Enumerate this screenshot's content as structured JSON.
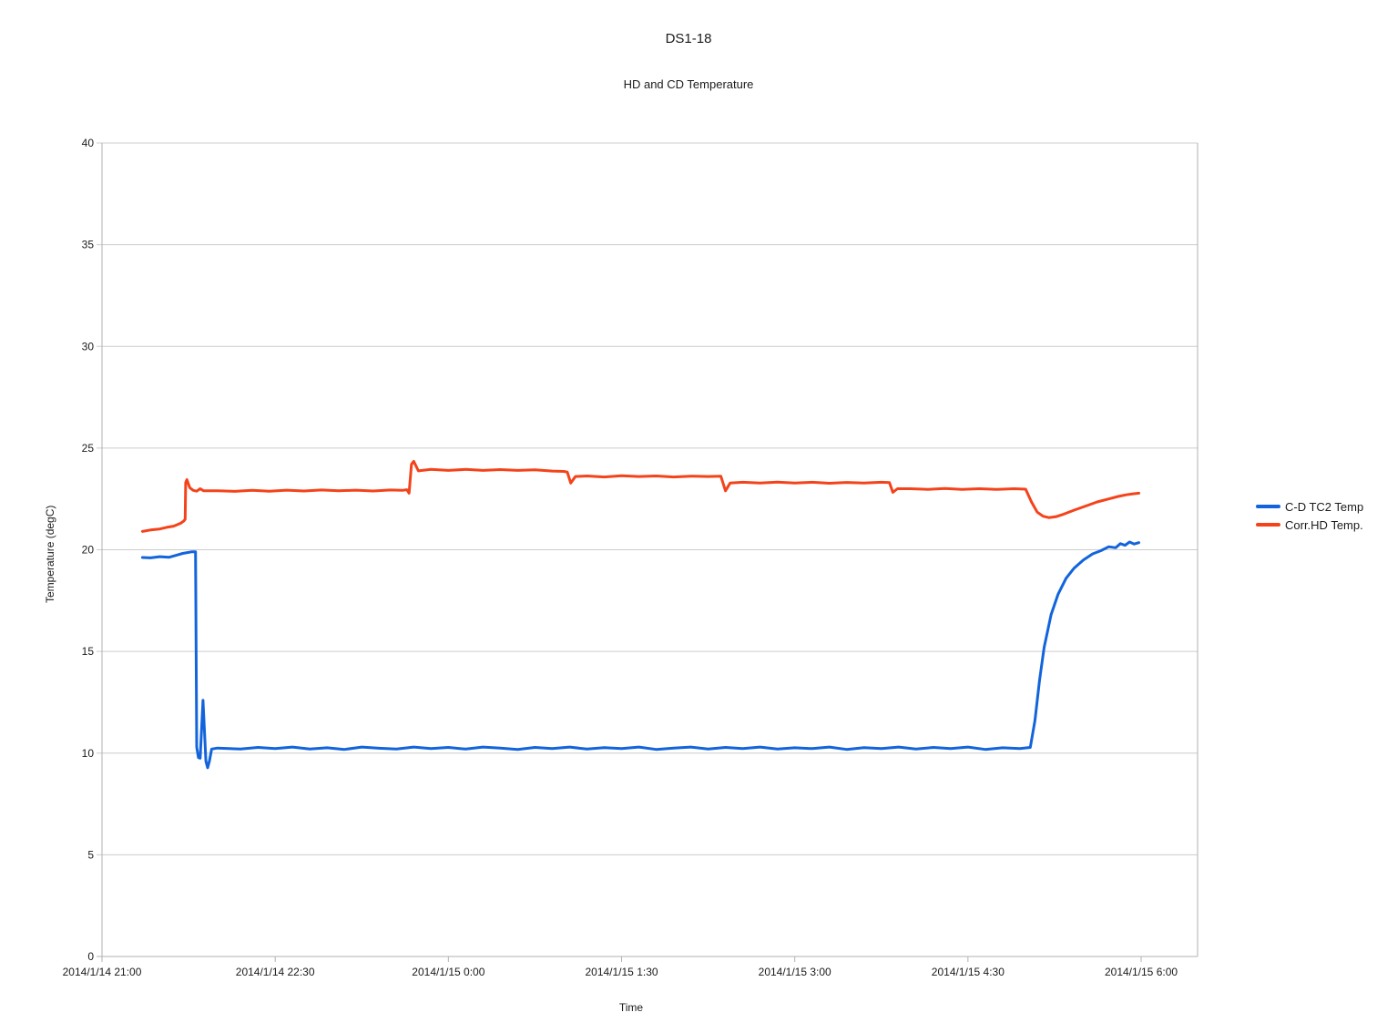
{
  "page": {
    "title": "DS1-18",
    "subtitle": "HD and CD Temperature"
  },
  "chart_data": {
    "type": "line",
    "title": "DS1-18",
    "subtitle": "HD and CD Temperature",
    "xlabel": "Time",
    "ylabel": "Temperature (degC)",
    "x_time_base": "2014/1/14 21:00",
    "x_units": "hours after 21:00",
    "xlim_hours": [
      0,
      9.49
    ],
    "ylim": [
      0,
      40
    ],
    "y_tick_step": 5,
    "y_ticks": [
      0,
      5,
      10,
      15,
      20,
      25,
      30,
      35,
      40
    ],
    "x_ticks": [
      {
        "t": 0.0,
        "label": "2014/1/14 21:00"
      },
      {
        "t": 1.5,
        "label": "2014/1/14 22:30"
      },
      {
        "t": 3.0,
        "label": "2014/1/15 0:00"
      },
      {
        "t": 4.5,
        "label": "2014/1/15 1:30"
      },
      {
        "t": 6.0,
        "label": "2014/1/15 3:00"
      },
      {
        "t": 7.5,
        "label": "2014/1/15 4:30"
      },
      {
        "t": 9.0,
        "label": "2014/1/15 6:00"
      }
    ],
    "grid": {
      "on": true,
      "color": "#cccccc",
      "border_color": "#b2b2b2"
    },
    "legend_position": "right",
    "series": [
      {
        "name": "C-D TC2 Temp",
        "color": "#1264dc",
        "points": [
          [
            0.35,
            19.62
          ],
          [
            0.42,
            19.6
          ],
          [
            0.5,
            19.66
          ],
          [
            0.58,
            19.63
          ],
          [
            0.65,
            19.74
          ],
          [
            0.7,
            19.82
          ],
          [
            0.74,
            19.86
          ],
          [
            0.78,
            19.9
          ],
          [
            0.81,
            19.9
          ],
          [
            0.82,
            10.3
          ],
          [
            0.835,
            9.78
          ],
          [
            0.85,
            9.75
          ],
          [
            0.875,
            12.6
          ],
          [
            0.9,
            9.6
          ],
          [
            0.915,
            9.28
          ],
          [
            0.93,
            9.6
          ],
          [
            0.95,
            10.2
          ],
          [
            1.0,
            10.25
          ],
          [
            1.2,
            10.2
          ],
          [
            1.35,
            10.28
          ],
          [
            1.5,
            10.22
          ],
          [
            1.65,
            10.3
          ],
          [
            1.8,
            10.2
          ],
          [
            1.95,
            10.26
          ],
          [
            2.1,
            10.18
          ],
          [
            2.25,
            10.3
          ],
          [
            2.4,
            10.24
          ],
          [
            2.55,
            10.2
          ],
          [
            2.7,
            10.3
          ],
          [
            2.85,
            10.22
          ],
          [
            3.0,
            10.28
          ],
          [
            3.15,
            10.2
          ],
          [
            3.3,
            10.3
          ],
          [
            3.45,
            10.25
          ],
          [
            3.6,
            10.18
          ],
          [
            3.75,
            10.28
          ],
          [
            3.9,
            10.22
          ],
          [
            4.05,
            10.3
          ],
          [
            4.2,
            10.2
          ],
          [
            4.35,
            10.27
          ],
          [
            4.5,
            10.22
          ],
          [
            4.65,
            10.3
          ],
          [
            4.8,
            10.18
          ],
          [
            4.95,
            10.25
          ],
          [
            5.1,
            10.3
          ],
          [
            5.25,
            10.2
          ],
          [
            5.4,
            10.28
          ],
          [
            5.55,
            10.22
          ],
          [
            5.7,
            10.3
          ],
          [
            5.85,
            10.2
          ],
          [
            6.0,
            10.26
          ],
          [
            6.15,
            10.22
          ],
          [
            6.3,
            10.3
          ],
          [
            6.45,
            10.18
          ],
          [
            6.6,
            10.27
          ],
          [
            6.75,
            10.22
          ],
          [
            6.9,
            10.3
          ],
          [
            7.05,
            10.2
          ],
          [
            7.2,
            10.28
          ],
          [
            7.35,
            10.22
          ],
          [
            7.5,
            10.3
          ],
          [
            7.65,
            10.18
          ],
          [
            7.8,
            10.26
          ],
          [
            7.95,
            10.22
          ],
          [
            8.04,
            10.28
          ],
          [
            8.08,
            11.6
          ],
          [
            8.12,
            13.6
          ],
          [
            8.16,
            15.2
          ],
          [
            8.22,
            16.8
          ],
          [
            8.28,
            17.8
          ],
          [
            8.35,
            18.6
          ],
          [
            8.42,
            19.1
          ],
          [
            8.5,
            19.5
          ],
          [
            8.58,
            19.8
          ],
          [
            8.65,
            19.95
          ],
          [
            8.72,
            20.15
          ],
          [
            8.78,
            20.1
          ],
          [
            8.82,
            20.3
          ],
          [
            8.86,
            20.22
          ],
          [
            8.9,
            20.38
          ],
          [
            8.94,
            20.28
          ],
          [
            8.98,
            20.35
          ]
        ]
      },
      {
        "name": "Corr.HD Temp.",
        "color": "#f4431a",
        "points": [
          [
            0.35,
            20.9
          ],
          [
            0.42,
            20.97
          ],
          [
            0.5,
            21.02
          ],
          [
            0.56,
            21.1
          ],
          [
            0.62,
            21.16
          ],
          [
            0.68,
            21.3
          ],
          [
            0.71,
            21.42
          ],
          [
            0.72,
            21.5
          ],
          [
            0.725,
            23.3
          ],
          [
            0.735,
            23.45
          ],
          [
            0.76,
            23.05
          ],
          [
            0.79,
            22.92
          ],
          [
            0.82,
            22.88
          ],
          [
            0.85,
            23.0
          ],
          [
            0.88,
            22.9
          ],
          [
            1.0,
            22.9
          ],
          [
            1.15,
            22.87
          ],
          [
            1.3,
            22.92
          ],
          [
            1.45,
            22.88
          ],
          [
            1.6,
            22.93
          ],
          [
            1.75,
            22.89
          ],
          [
            1.9,
            22.94
          ],
          [
            2.05,
            22.9
          ],
          [
            2.2,
            22.93
          ],
          [
            2.35,
            22.89
          ],
          [
            2.5,
            22.94
          ],
          [
            2.6,
            22.92
          ],
          [
            2.64,
            22.95
          ],
          [
            2.66,
            22.78
          ],
          [
            2.68,
            24.2
          ],
          [
            2.7,
            24.35
          ],
          [
            2.74,
            23.88
          ],
          [
            2.85,
            23.95
          ],
          [
            3.0,
            23.9
          ],
          [
            3.15,
            23.95
          ],
          [
            3.3,
            23.9
          ],
          [
            3.45,
            23.94
          ],
          [
            3.6,
            23.9
          ],
          [
            3.75,
            23.93
          ],
          [
            3.9,
            23.87
          ],
          [
            4.0,
            23.85
          ],
          [
            4.03,
            23.82
          ],
          [
            4.06,
            23.28
          ],
          [
            4.1,
            23.6
          ],
          [
            4.2,
            23.63
          ],
          [
            4.35,
            23.58
          ],
          [
            4.5,
            23.64
          ],
          [
            4.65,
            23.6
          ],
          [
            4.8,
            23.63
          ],
          [
            4.95,
            23.58
          ],
          [
            5.1,
            23.62
          ],
          [
            5.25,
            23.6
          ],
          [
            5.36,
            23.62
          ],
          [
            5.4,
            22.9
          ],
          [
            5.44,
            23.28
          ],
          [
            5.55,
            23.32
          ],
          [
            5.7,
            23.28
          ],
          [
            5.85,
            23.33
          ],
          [
            6.0,
            23.28
          ],
          [
            6.15,
            23.32
          ],
          [
            6.3,
            23.27
          ],
          [
            6.45,
            23.31
          ],
          [
            6.6,
            23.28
          ],
          [
            6.75,
            23.32
          ],
          [
            6.82,
            23.3
          ],
          [
            6.85,
            22.82
          ],
          [
            6.89,
            23.0
          ],
          [
            7.0,
            23.0
          ],
          [
            7.15,
            22.97
          ],
          [
            7.3,
            23.01
          ],
          [
            7.45,
            22.97
          ],
          [
            7.6,
            23.0
          ],
          [
            7.75,
            22.97
          ],
          [
            7.9,
            23.0
          ],
          [
            8.0,
            22.98
          ],
          [
            8.05,
            22.35
          ],
          [
            8.1,
            21.85
          ],
          [
            8.15,
            21.65
          ],
          [
            8.2,
            21.58
          ],
          [
            8.26,
            21.62
          ],
          [
            8.33,
            21.75
          ],
          [
            8.42,
            21.95
          ],
          [
            8.52,
            22.15
          ],
          [
            8.62,
            22.35
          ],
          [
            8.72,
            22.5
          ],
          [
            8.8,
            22.62
          ],
          [
            8.87,
            22.7
          ],
          [
            8.93,
            22.75
          ],
          [
            8.98,
            22.78
          ]
        ]
      }
    ]
  }
}
